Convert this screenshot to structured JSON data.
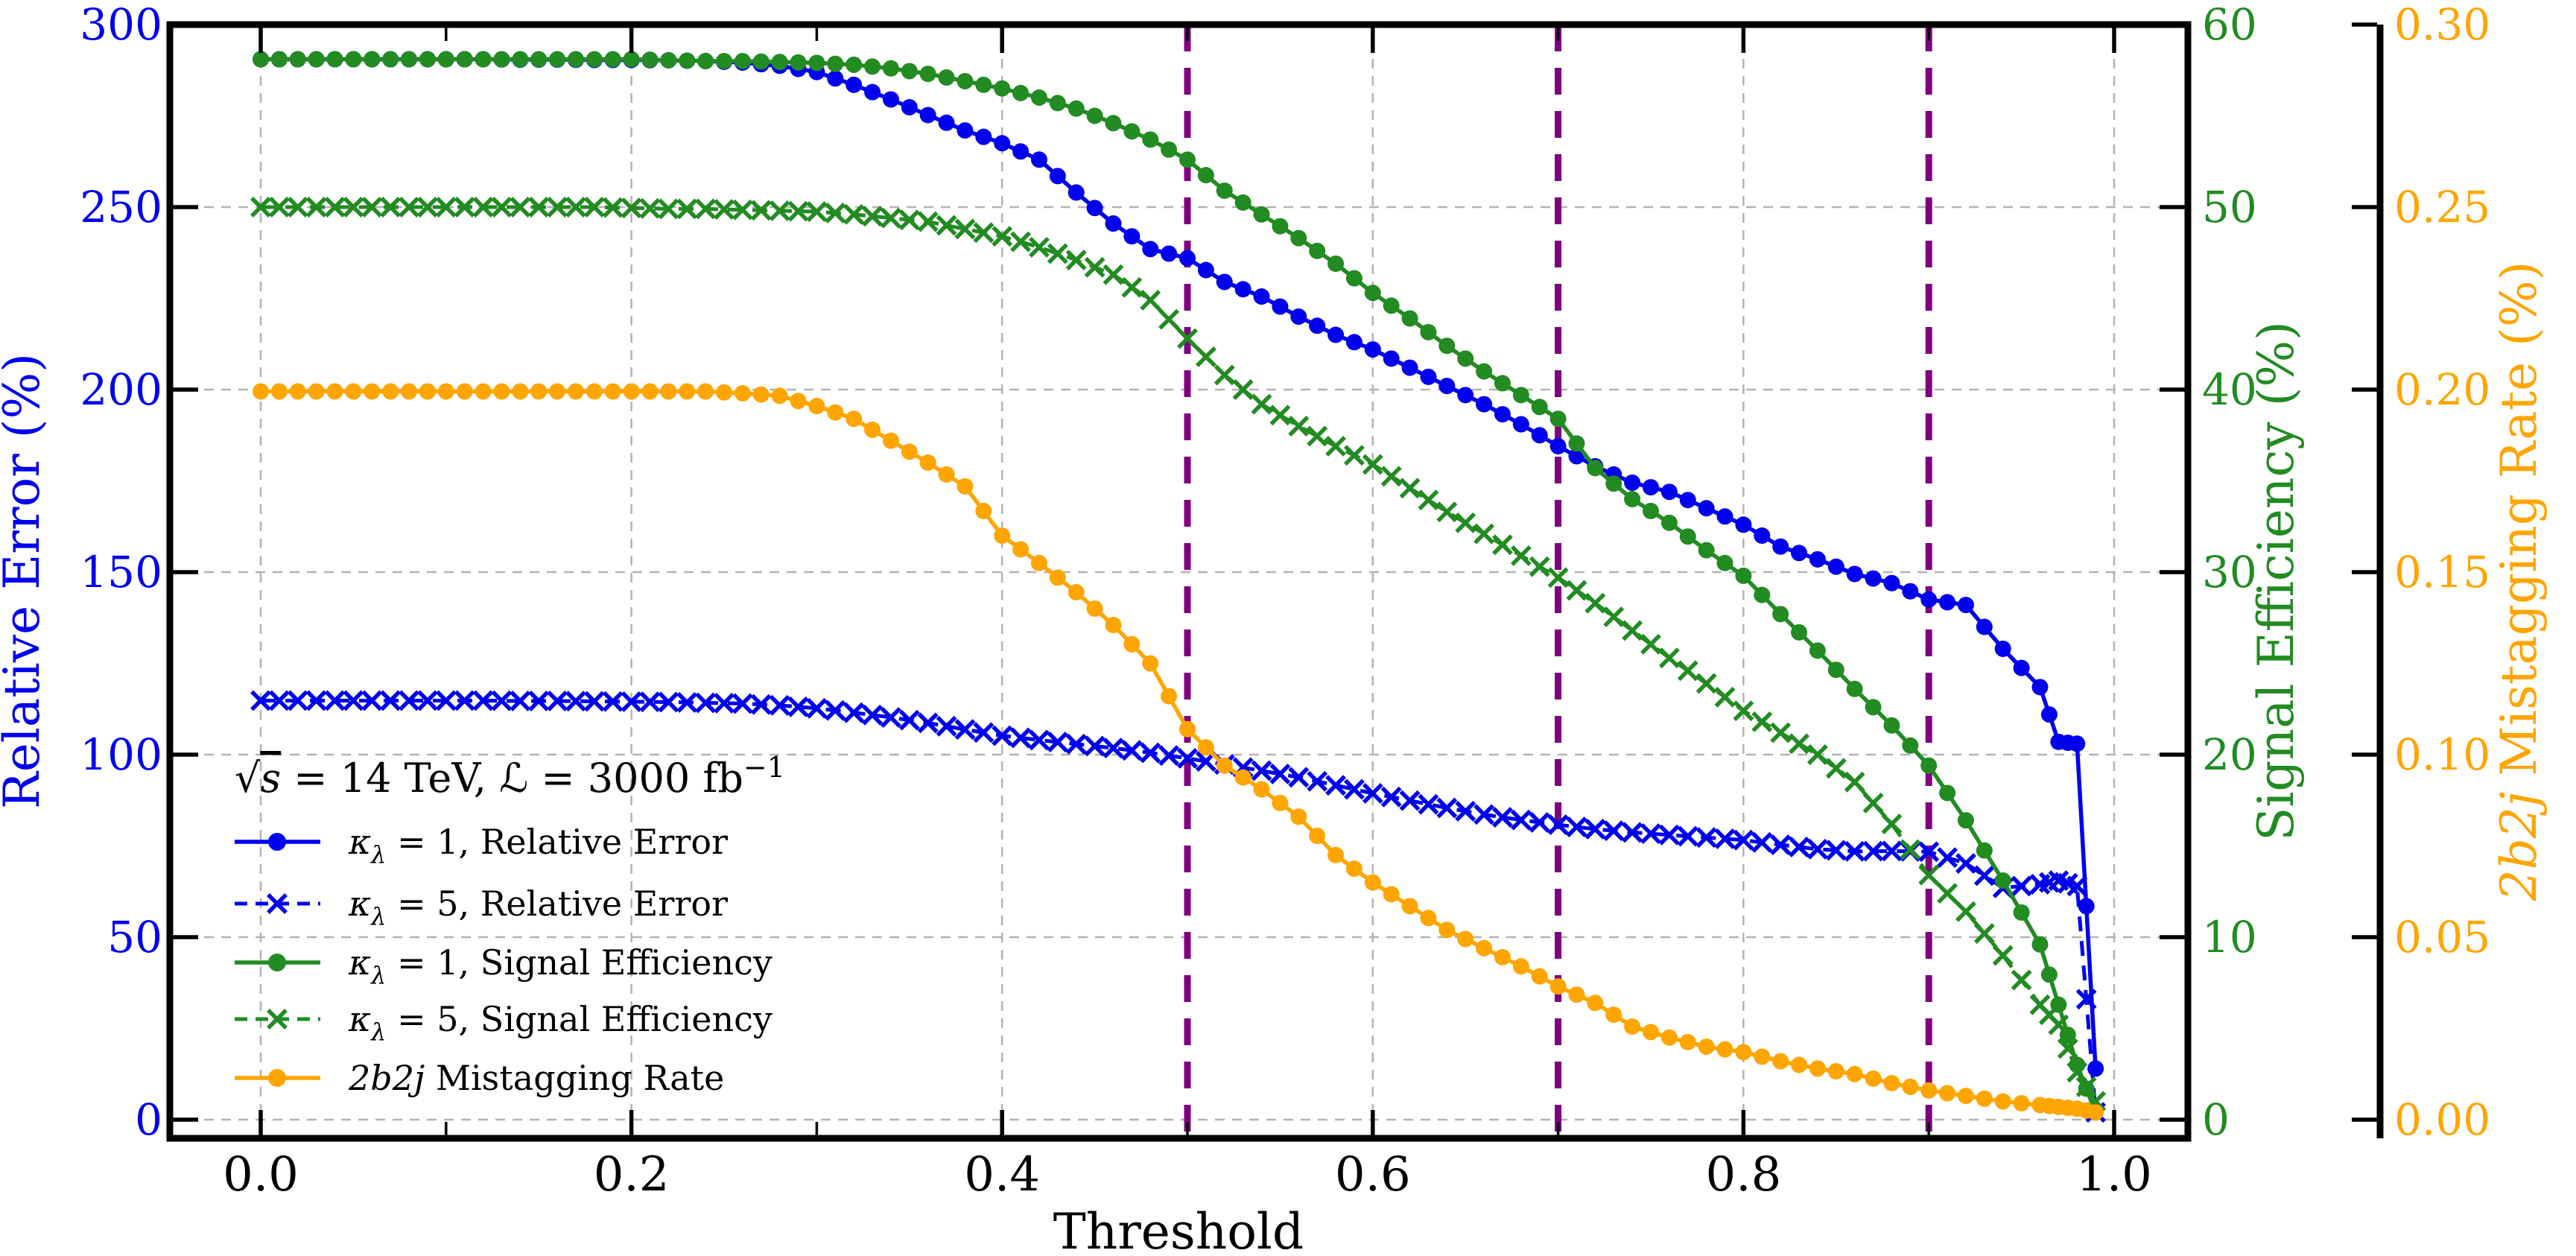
{
  "chart_data": {
    "type": "line",
    "title": "",
    "xlabel": "Threshold",
    "annotation": {
      "sqrt": "√",
      "s": "s",
      "mid1": " = 14 TeV, ",
      "lum": "ℒ",
      "mid2": " = 3000 fb",
      "sup": "−1"
    },
    "xlim": [
      -0.049,
      1.0398
    ],
    "x_ticks": {
      "values": [
        0.0,
        0.2,
        0.4,
        0.6,
        0.8,
        1.0
      ],
      "labels": [
        "0.0",
        "0.2",
        "0.4",
        "0.6",
        "0.8",
        "1.0"
      ]
    },
    "x_minor_ticks": [
      0.1,
      0.3,
      0.5,
      0.7,
      0.9
    ],
    "grid": {
      "on": true,
      "color": "#b3b3b3"
    },
    "vlines": {
      "color": "#800080",
      "positions": [
        0.5,
        0.7,
        0.9
      ]
    },
    "axes": {
      "left": {
        "label": "Relative Error (%)",
        "color": "#0000ee",
        "lim": [
          0,
          300
        ],
        "tick_values": [
          0,
          50,
          100,
          150,
          200,
          250,
          300
        ],
        "tick_labels": [
          "0",
          "50",
          "100",
          "150",
          "200",
          "250",
          "300"
        ]
      },
      "signal": {
        "label": "Signal Efficiency (%)",
        "color": "#228b22",
        "lim": [
          0,
          60
        ],
        "tick_values": [
          0,
          10,
          20,
          30,
          40,
          50,
          60
        ],
        "tick_labels": [
          "0",
          "10",
          "20",
          "30",
          "40",
          "50",
          "60"
        ]
      },
      "mistag": {
        "label_italic": "2b2j",
        "label_rest": " Mistagging Rate (%)",
        "color": "#ffa500",
        "lim": [
          0,
          0.3
        ],
        "tick_values": [
          0,
          0.05,
          0.1,
          0.15,
          0.2,
          0.25,
          0.3
        ],
        "tick_labels": [
          "0.00",
          "0.05",
          "0.10",
          "0.15",
          "0.20",
          "0.25",
          "0.30"
        ]
      }
    },
    "x": [
      0.0,
      0.02,
      0.04,
      0.06,
      0.08,
      0.1,
      0.12,
      0.14,
      0.16,
      0.18,
      0.2,
      0.22,
      0.24,
      0.26,
      0.28,
      0.3,
      0.32,
      0.34,
      0.36,
      0.38,
      0.4,
      0.42,
      0.44,
      0.46,
      0.48,
      0.5,
      0.52,
      0.54,
      0.56,
      0.58,
      0.6,
      0.62,
      0.64,
      0.66,
      0.68,
      0.7,
      0.72,
      0.74,
      0.76,
      0.78,
      0.8,
      0.82,
      0.84,
      0.86,
      0.88,
      0.9,
      0.92,
      0.94,
      0.96,
      0.97,
      0.98,
      0.99
    ],
    "series": [
      {
        "name": "kappa1-relative-error",
        "axis": "left",
        "color": "#0000ee",
        "line": "solid",
        "marker": "circle",
        "legend": {
          "pre": "κ",
          "sub": "λ",
          "post": " = 1, Relative Error"
        },
        "values": [
          290.5,
          290.5,
          290.5,
          290.5,
          290.5,
          290.5,
          290.5,
          290.4,
          290.4,
          290.3,
          290.3,
          290.2,
          290.0,
          289.6,
          288.7,
          287.0,
          283.5,
          279.5,
          275.2,
          271.0,
          267.5,
          263.0,
          254.0,
          245.5,
          238.5,
          236.0,
          229.5,
          225.5,
          220.0,
          215.0,
          211.0,
          206.0,
          201.0,
          196.0,
          190.5,
          184.5,
          179.0,
          174.5,
          172.0,
          167.5,
          163.0,
          157.0,
          153.5,
          149.5,
          147.0,
          142.5,
          141.0,
          129.0,
          118.5,
          103.5,
          103.0,
          14.0
        ]
      },
      {
        "name": "kappa5-relative-error",
        "axis": "left",
        "color": "#0000ee",
        "line": "dashed",
        "marker": "x",
        "legend": {
          "pre": "κ",
          "sub": "λ",
          "post": " = 5, Relative Error"
        },
        "values": [
          114.8,
          114.8,
          114.8,
          114.8,
          114.8,
          114.8,
          114.8,
          114.7,
          114.7,
          114.6,
          114.5,
          114.4,
          114.2,
          114.0,
          113.5,
          112.7,
          111.5,
          110.2,
          108.7,
          106.9,
          105.2,
          104.0,
          102.9,
          101.8,
          100.5,
          99.0,
          97.3,
          95.6,
          93.8,
          91.6,
          89.4,
          87.4,
          85.4,
          83.6,
          82.1,
          80.8,
          79.6,
          78.7,
          78.0,
          77.3,
          76.6,
          75.3,
          74.1,
          73.5,
          73.6,
          73.4,
          70.2,
          63.5,
          64.5,
          65.5,
          64.0,
          2.0
        ]
      },
      {
        "name": "kappa1-signal-efficiency",
        "axis": "signal",
        "color": "#228b22",
        "line": "solid",
        "marker": "circle",
        "legend": {
          "pre": "κ",
          "sub": "λ",
          "post": " = 1, Signal Efficiency"
        },
        "values": [
          58.1,
          58.1,
          58.1,
          58.1,
          58.1,
          58.1,
          58.1,
          58.1,
          58.1,
          58.1,
          58.1,
          58.05,
          58.0,
          58.0,
          57.95,
          57.9,
          57.8,
          57.6,
          57.3,
          56.9,
          56.5,
          56.0,
          55.4,
          54.6,
          53.7,
          52.6,
          50.9,
          49.6,
          48.3,
          46.9,
          45.3,
          43.9,
          42.4,
          41.0,
          39.7,
          38.4,
          35.7,
          34.0,
          32.7,
          31.2,
          29.8,
          27.7,
          25.7,
          23.6,
          21.6,
          19.4,
          16.4,
          13.1,
          9.6,
          6.3,
          3.0,
          0.4
        ]
      },
      {
        "name": "kappa5-signal-efficiency",
        "axis": "signal",
        "color": "#228b22",
        "line": "dashed",
        "marker": "x",
        "legend": {
          "pre": "κ",
          "sub": "λ",
          "post": " = 5, Signal Efficiency"
        },
        "values": [
          50.0,
          50.0,
          50.0,
          50.0,
          50.0,
          50.0,
          50.0,
          50.0,
          50.0,
          50.0,
          49.95,
          49.9,
          49.9,
          49.85,
          49.8,
          49.75,
          49.6,
          49.4,
          49.2,
          48.8,
          48.4,
          47.8,
          47.1,
          46.3,
          44.9,
          42.8,
          40.8,
          39.2,
          38.0,
          36.9,
          35.9,
          34.6,
          33.3,
          32.1,
          30.9,
          29.7,
          28.3,
          26.8,
          25.3,
          23.9,
          22.4,
          21.2,
          20.0,
          18.5,
          16.2,
          13.4,
          11.4,
          9.0,
          6.3,
          5.2,
          2.6,
          1.0
        ]
      },
      {
        "name": "2b2j-mistagging-rate",
        "axis": "mistag",
        "color": "#ffa500",
        "line": "solid",
        "marker": "circle",
        "legend": {
          "italic": "2b2j",
          "post": " Mistagging Rate"
        },
        "values": [
          0.1995,
          0.1995,
          0.1995,
          0.1995,
          0.1995,
          0.1995,
          0.1995,
          0.1995,
          0.1995,
          0.1995,
          0.1995,
          0.1995,
          0.1995,
          0.199,
          0.1983,
          0.1955,
          0.192,
          0.186,
          0.18,
          0.1735,
          0.16,
          0.1525,
          0.1445,
          0.1355,
          0.125,
          0.107,
          0.097,
          0.0905,
          0.083,
          0.0725,
          0.065,
          0.0585,
          0.052,
          0.047,
          0.042,
          0.0365,
          0.032,
          0.0255,
          0.0225,
          0.02,
          0.0185,
          0.016,
          0.014,
          0.0125,
          0.01,
          0.008,
          0.0065,
          0.005,
          0.004,
          0.0035,
          0.003,
          0.002
        ]
      }
    ]
  }
}
